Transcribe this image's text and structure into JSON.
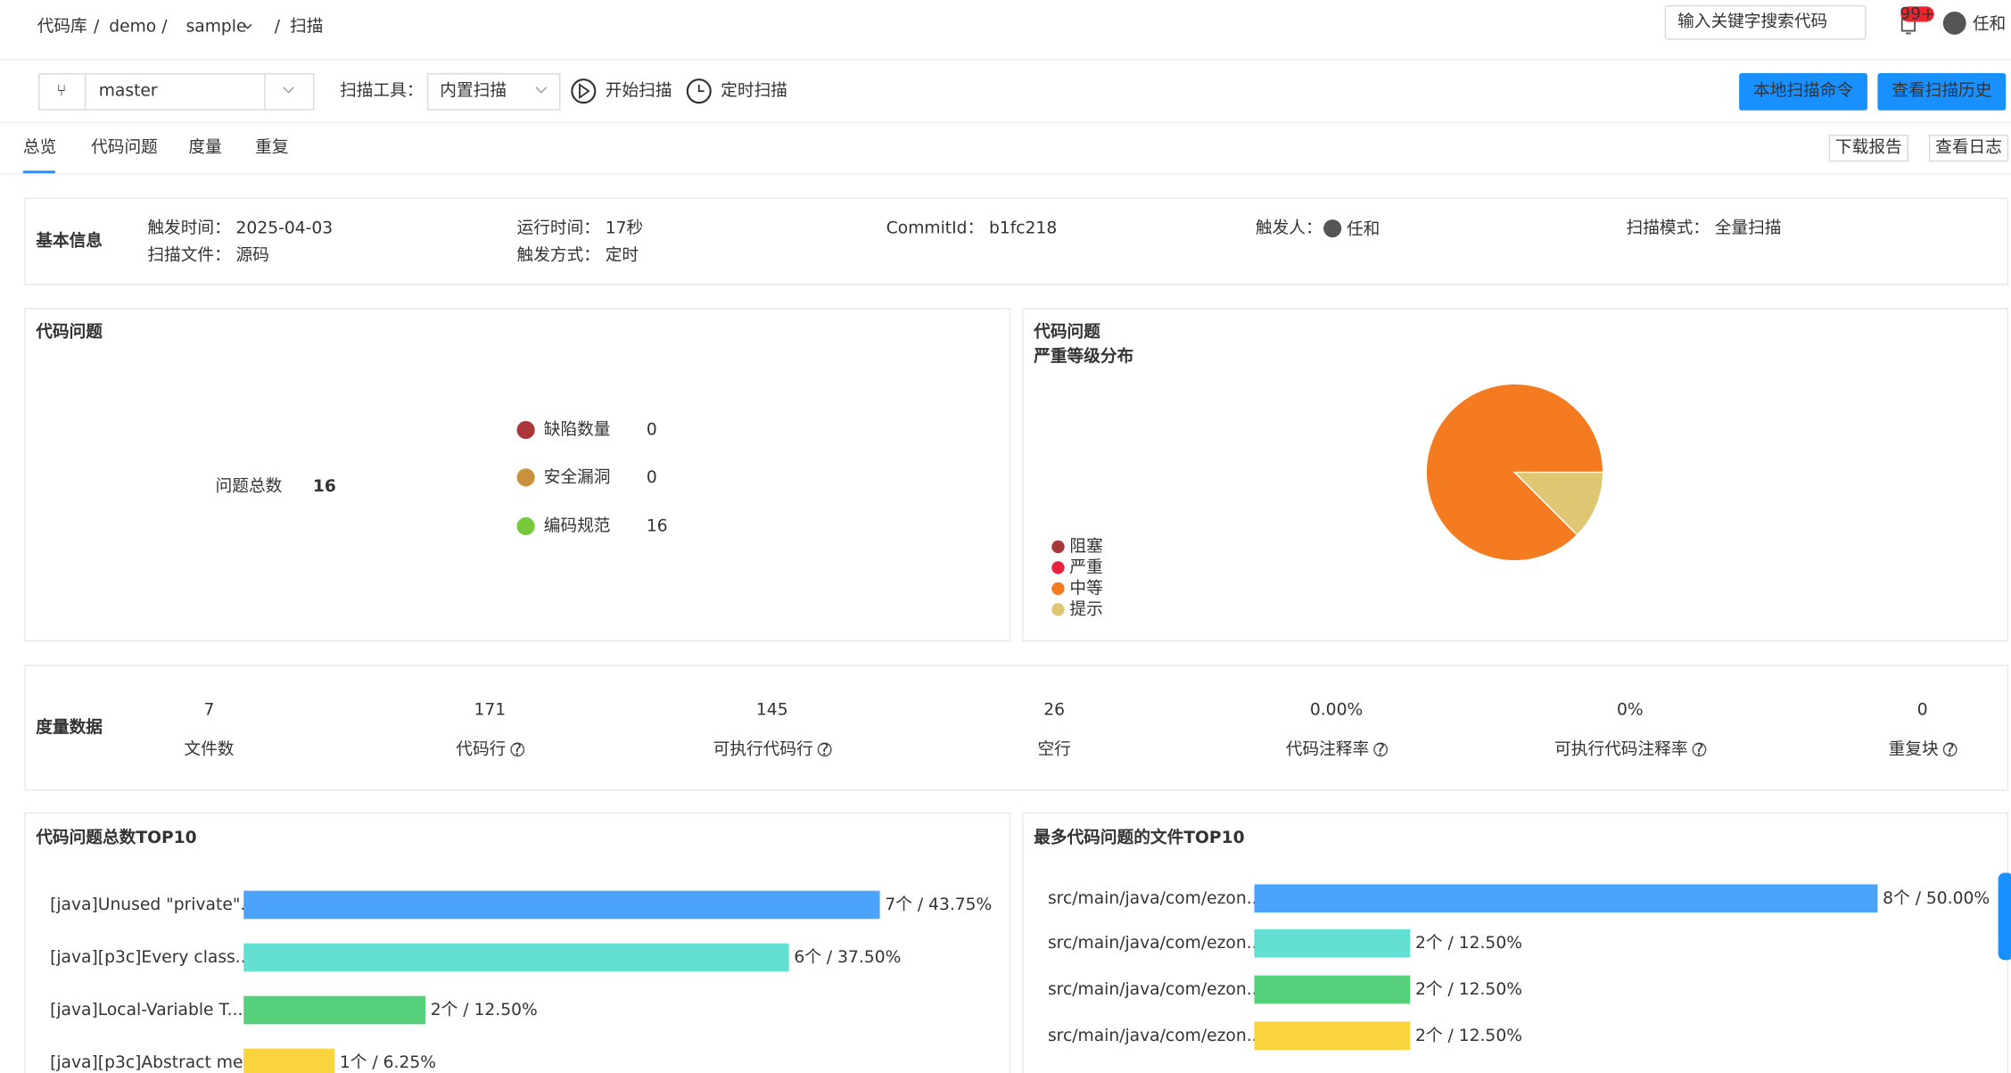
{
  "breadcrumb": {
    "items": [
      "代码库",
      "demo",
      "sample",
      "扫描"
    ]
  },
  "header": {
    "search_placeholder": "输入关键字搜索代码",
    "badge": "99+",
    "user": "任和"
  },
  "toolbar": {
    "branch": "master",
    "tool_label": "扫描工具：",
    "tool": "内置扫描",
    "start": "开始扫描",
    "schedule": "定时扫描",
    "buttons": [
      "本地扫描命令",
      "查看扫描历史"
    ]
  },
  "tabs": {
    "items": [
      "总览",
      "代码问题",
      "度量",
      "重复"
    ],
    "active": 0,
    "buttons": [
      "下载报告",
      "查看日志"
    ]
  },
  "basic_info": {
    "title": "基本信息",
    "items": [
      {
        "label": "触发时间：",
        "value": "2025-04-03"
      },
      {
        "label": "扫描文件：",
        "value": "源码"
      },
      {
        "label": "运行时间：",
        "value": "17秒"
      },
      {
        "label": "触发方式：",
        "value": "定时"
      },
      {
        "label": "CommitId：",
        "value": "b1fc218"
      },
      {
        "label": "触发人：",
        "value": "任和"
      },
      {
        "label": "扫描模式：",
        "value": "全量扫描"
      }
    ]
  },
  "issues": {
    "title": "代码问题",
    "total_label": "问题总数",
    "total": 16,
    "items": [
      {
        "name": "缺陷数量",
        "value": 0,
        "color": "#a8363b"
      },
      {
        "name": "安全漏洞",
        "value": 0,
        "color": "#c9913d"
      },
      {
        "name": "编码规范",
        "value": 16,
        "color": "#76c93b"
      }
    ]
  },
  "metrics": {
    "title": "度量数据",
    "items": [
      {
        "value": 7,
        "label": "文件数"
      },
      {
        "value": 171,
        "label": "代码行",
        "help": true
      },
      {
        "value": 145,
        "label": "可执行代码行",
        "help": true
      },
      {
        "value": 26,
        "label": "空行"
      },
      {
        "value": 0,
        "value_label": "0.00%",
        "label": "代码注释率",
        "help": true
      },
      {
        "value": 0,
        "value_label": "0%",
        "label": "可执行代码注释率",
        "help": true
      },
      {
        "value": 0,
        "label": "重复块",
        "help": true
      }
    ]
  },
  "chart_data": [
    {
      "type": "pie",
      "title": "代码问题",
      "subtitle": "严重等级分布",
      "categories": [
        "阻塞",
        "严重",
        "中等",
        "提示"
      ],
      "values": [
        0,
        0,
        14,
        2
      ],
      "colors": [
        "#a8363b",
        "#e8213f",
        "#f47b20",
        "#dec672"
      ]
    },
    {
      "type": "bar",
      "orientation": "horizontal",
      "title": "代码问题总数TOP10",
      "categories": [
        "[java]Unused \"private\"...",
        "[java][p3c]Every class...",
        "[java]Local-Variable T...",
        "[java][p3c]Abstract me..."
      ],
      "values": [
        7,
        6,
        2,
        1
      ],
      "value_labels": [
        "7个 / 43.75%",
        "6个 / 37.50%",
        "2个 / 12.50%",
        "1个 / 6.25%"
      ],
      "colors": [
        "#4ca3fb",
        "#63dfd3",
        "#55cf7a",
        "#fad43e"
      ]
    },
    {
      "type": "bar",
      "orientation": "horizontal",
      "title": "最多代码问题的文件TOP10",
      "categories": [
        "src/main/java/com/ezon...",
        "src/main/java/com/ezon...",
        "src/main/java/com/ezon...",
        "src/main/java/com/ezon..."
      ],
      "values": [
        8,
        2,
        2,
        2
      ],
      "value_labels": [
        "8个 / 50.00%",
        "2个 / 12.50%",
        "2个 / 12.50%",
        "2个 / 12.50%"
      ],
      "colors": [
        "#4ca3fb",
        "#63dfd3",
        "#55cf7a",
        "#fad43e"
      ]
    }
  ]
}
